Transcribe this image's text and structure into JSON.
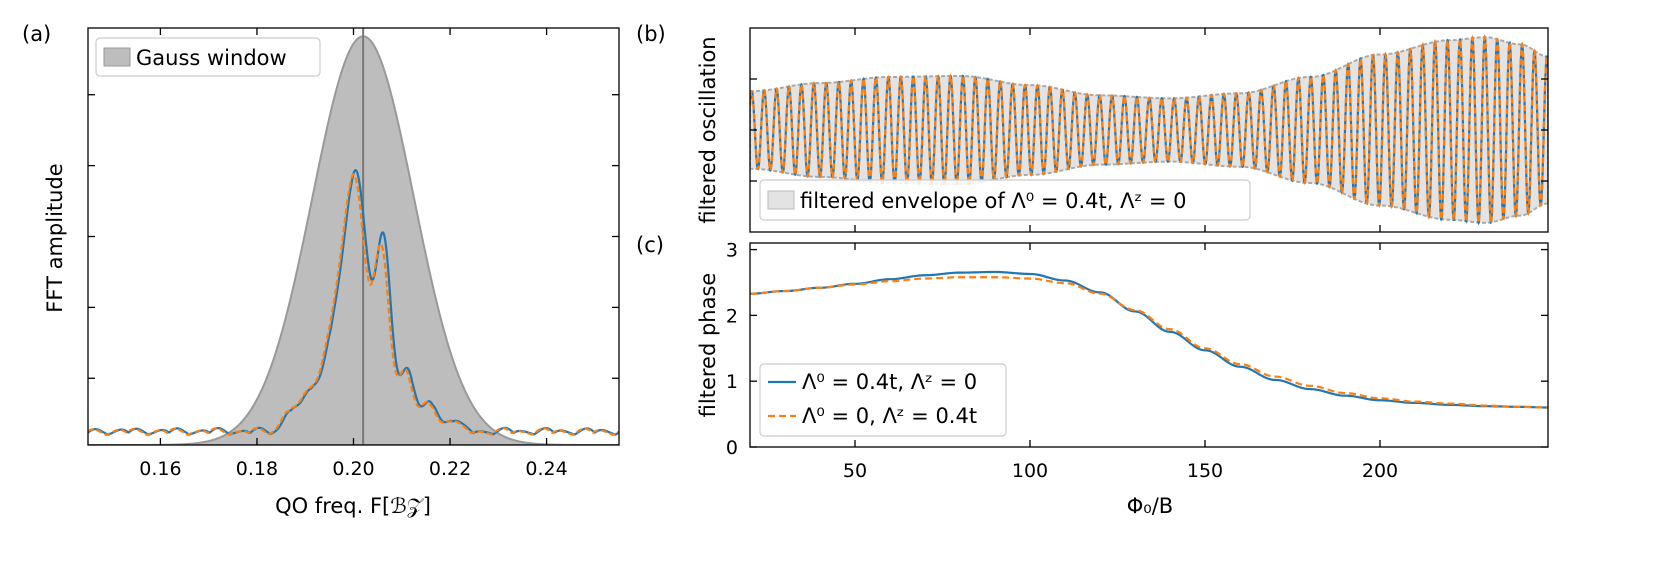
{
  "panel_labels": [
    "(a)",
    "(b)",
    "(c)"
  ],
  "colors": {
    "blue": "#1f77b4",
    "orange": "#ff7f0e",
    "window_fill": "#bdbdbd",
    "window_edge": "#999999",
    "envelope_fill": "#e3e3e3",
    "marker_line": "#777777"
  },
  "chart_data": [
    {
      "id": "a",
      "type": "line",
      "title": "",
      "xlabel": "QO freq. F[ℬ𝒵]",
      "ylabel": "FFT amplitude",
      "xlim": [
        0.145,
        0.255
      ],
      "ylim": [
        0,
        1.0
      ],
      "xticks": [
        0.16,
        0.18,
        0.2,
        0.22,
        0.24
      ],
      "xtick_labels": [
        "0.16",
        "0.18",
        "0.20",
        "0.22",
        "0.24"
      ],
      "yticks": [
        0.16,
        0.33,
        0.5,
        0.67,
        0.84
      ],
      "ytick_labels": [],
      "legend": {
        "placement": "top-left",
        "entries": [
          "Gauss window"
        ]
      },
      "gauss_window": {
        "center": 0.202,
        "sigma": 0.0105,
        "peak": 0.98
      },
      "marker_x": 0.202,
      "peaks": [
        {
          "x": 0.2005,
          "amp": 0.62,
          "sigma": 0.0024
        },
        {
          "x": 0.2063,
          "amp": 0.43,
          "sigma": 0.0016
        },
        {
          "x": 0.1955,
          "amp": 0.19,
          "sigma": 0.002
        },
        {
          "x": 0.2112,
          "amp": 0.15,
          "sigma": 0.0015
        },
        {
          "x": 0.216,
          "amp": 0.07,
          "sigma": 0.0014
        },
        {
          "x": 0.191,
          "amp": 0.09,
          "sigma": 0.0016
        },
        {
          "x": 0.187,
          "amp": 0.05,
          "sigma": 0.0014
        },
        {
          "x": 0.2205,
          "amp": 0.03,
          "sigma": 0.0014
        }
      ],
      "series": [
        {
          "name": "Λ⁰ = 0.4t, Λᶻ = 0",
          "color": "#1f77b4",
          "dash": ""
        },
        {
          "name": "Λ⁰ = 0, Λᶻ = 0.4t",
          "color": "#ff7f0e",
          "dash": "6,3"
        }
      ]
    },
    {
      "id": "b",
      "type": "line",
      "xlabel": "",
      "ylabel": "filtered oscillation",
      "xlim": [
        20,
        248
      ],
      "ylim": [
        -1.0,
        1.0
      ],
      "yticks": [
        -0.5,
        0.0,
        0.5
      ],
      "legend": {
        "placement": "bottom-left",
        "entries": [
          "filtered envelope of Λ⁰ = 0.4t, Λᶻ = 0"
        ]
      },
      "oscillation_period": 3.55,
      "envelope": {
        "x": [
          20,
          40,
          60,
          80,
          100,
          120,
          140,
          160,
          180,
          200,
          220,
          230,
          240,
          248
        ],
        "y": [
          0.38,
          0.46,
          0.52,
          0.53,
          0.44,
          0.34,
          0.31,
          0.36,
          0.52,
          0.74,
          0.88,
          0.91,
          0.84,
          0.72
        ]
      }
    },
    {
      "id": "c",
      "type": "line",
      "xlabel": "Φ₀/B",
      "ylabel": "filtered phase",
      "xlim": [
        20,
        248
      ],
      "ylim": [
        0,
        3.1
      ],
      "xticks": [
        50,
        100,
        150,
        200
      ],
      "xtick_labels": [
        "50",
        "100",
        "150",
        "200"
      ],
      "yticks": [
        0,
        1,
        2,
        3
      ],
      "ytick_labels": [
        "0",
        "1",
        "2",
        "3"
      ],
      "legend": {
        "placement": "bottom-left",
        "entries": [
          "Λ⁰ = 0.4t, Λᶻ = 0",
          "Λ⁰ = 0, Λᶻ = 0.4t"
        ]
      },
      "series": [
        {
          "name": "Λ⁰ = 0.4t, Λᶻ = 0",
          "color": "#1f77b4",
          "dash": "",
          "x": [
            20,
            30,
            40,
            50,
            60,
            70,
            80,
            90,
            100,
            110,
            120,
            130,
            140,
            150,
            160,
            170,
            180,
            190,
            200,
            210,
            220,
            230,
            240,
            248
          ],
          "y": [
            2.33,
            2.37,
            2.42,
            2.48,
            2.55,
            2.61,
            2.65,
            2.66,
            2.63,
            2.53,
            2.35,
            2.06,
            1.75,
            1.47,
            1.22,
            1.02,
            0.88,
            0.78,
            0.71,
            0.67,
            0.64,
            0.62,
            0.61,
            0.6
          ]
        },
        {
          "name": "Λ⁰ = 0, Λᶻ = 0.4t",
          "color": "#ff7f0e",
          "dash": "7,4",
          "x": [
            20,
            30,
            40,
            50,
            60,
            70,
            80,
            90,
            100,
            110,
            120,
            130,
            140,
            150,
            160,
            170,
            180,
            190,
            200,
            210,
            220,
            230,
            240,
            248
          ],
          "y": [
            2.33,
            2.37,
            2.42,
            2.47,
            2.52,
            2.56,
            2.58,
            2.58,
            2.56,
            2.49,
            2.33,
            2.08,
            1.79,
            1.5,
            1.26,
            1.07,
            0.93,
            0.82,
            0.74,
            0.69,
            0.66,
            0.63,
            0.61,
            0.6
          ]
        }
      ]
    }
  ]
}
